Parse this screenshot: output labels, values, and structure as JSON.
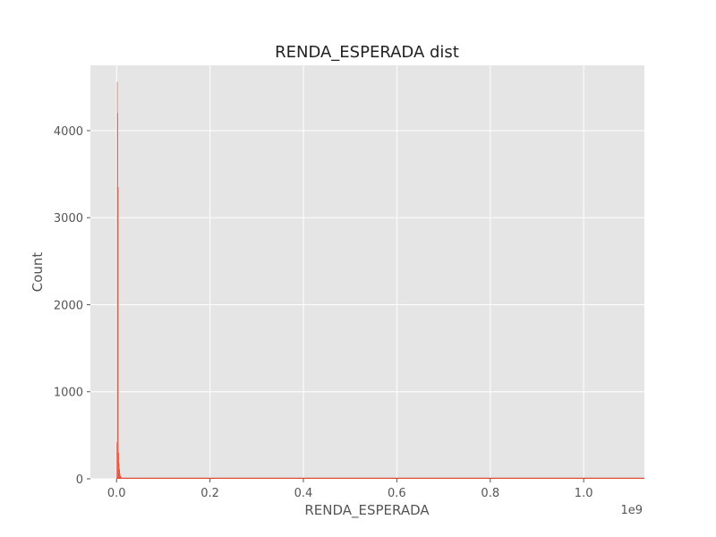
{
  "chart_data": {
    "type": "bar",
    "title": "RENDA_ESPERADA dist",
    "xlabel": "RENDA_ESPERADA",
    "ylabel": "Count",
    "x_offset_text": "1e9",
    "xlim": [
      -0.056,
      1.13
    ],
    "ylim": [
      0,
      4750
    ],
    "x_ticks": [
      0.0,
      0.2,
      0.4,
      0.6,
      0.8,
      1.0
    ],
    "x_tick_labels": [
      "0.0",
      "0.2",
      "0.4",
      "0.6",
      "0.8",
      "1.0"
    ],
    "y_ticks": [
      0,
      1000,
      2000,
      3000,
      4000
    ],
    "y_tick_labels": [
      "0",
      "1000",
      "2000",
      "3000",
      "4000"
    ],
    "grid": true,
    "x_range": [
      0.0,
      1.13
    ],
    "bins": [
      {
        "x0": 0.0,
        "x1": 0.001,
        "count": 420
      },
      {
        "x0": 0.001,
        "x1": 0.002,
        "count": 4560
      },
      {
        "x0": 0.002,
        "x1": 0.003,
        "count": 4200
      },
      {
        "x0": 0.003,
        "x1": 0.004,
        "count": 3350
      },
      {
        "x0": 0.004,
        "x1": 0.005,
        "count": 300
      },
      {
        "x0": 0.005,
        "x1": 0.006,
        "count": 180
      },
      {
        "x0": 0.006,
        "x1": 0.007,
        "count": 110
      },
      {
        "x0": 0.007,
        "x1": 0.008,
        "count": 60
      },
      {
        "x0": 0.008,
        "x1": 0.01,
        "count": 30
      },
      {
        "x0": 0.01,
        "x1": 0.014,
        "count": 10
      },
      {
        "x0": 0.014,
        "x1": 1.13,
        "count": 0
      }
    ],
    "colors": {
      "bar": "#E24A33",
      "axes_bg": "#E5E5E5",
      "grid": "#FFFFFF"
    }
  }
}
